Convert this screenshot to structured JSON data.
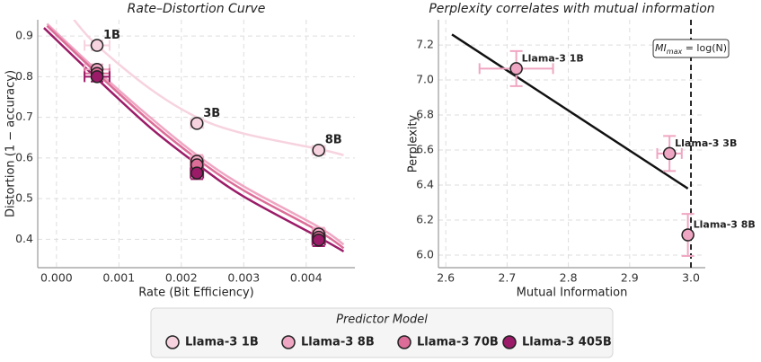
{
  "chart_data": [
    {
      "type": "scatter",
      "title": "Rate–Distortion Curve",
      "x_label": "Rate (Bit Efficiency)",
      "y_label": "Distortion (1 − accuracy)",
      "xlim": [
        -0.0003,
        0.00478
      ],
      "ylim": [
        0.33,
        0.94
      ],
      "xticks": [
        {
          "value": 0,
          "label": "0.000"
        },
        {
          "value": 0.001,
          "label": "0.001"
        },
        {
          "value": 0.002,
          "label": "0.002"
        },
        {
          "value": 0.003,
          "label": "0.003"
        },
        {
          "value": 0.004,
          "label": "0.004"
        }
      ],
      "yticks": [
        0.4,
        0.5,
        0.6,
        0.7,
        0.8,
        0.9
      ],
      "grid": true,
      "x": [
        0.00065,
        0.00225,
        0.0042
      ],
      "annotations": [
        "1B",
        "3B",
        "8B"
      ],
      "series": [
        {
          "name": "Llama-3 1B",
          "color": "#f7d3df",
          "values": [
            0.877,
            0.685,
            0.619
          ],
          "xerr": [
            0.0002,
            0.0001,
            0.0001
          ],
          "yerr": [
            0.012,
            0.01,
            0.01
          ],
          "fit": {
            "x": [
              0.00028,
              0.00065,
              0.0015,
              0.00225,
              0.003,
              0.0042,
              0.0046
            ],
            "values": [
              0.94,
              0.877,
              0.77,
              0.7,
              0.66,
              0.622,
              0.607
            ]
          }
        },
        {
          "name": "Llama-3 8B",
          "color": "#efa6c2",
          "values": [
            0.818,
            0.592,
            0.413
          ],
          "xerr": [
            0.0002,
            0.0001,
            0.0001
          ],
          "yerr": [
            0.012,
            0.015,
            0.015
          ],
          "fit": {
            "x": [
              -0.00015,
              0.00065,
              0.0015,
              0.00225,
              0.003,
              0.0042,
              0.0046
            ],
            "values": [
              0.93,
              0.815,
              0.7,
              0.607,
              0.53,
              0.43,
              0.387
            ]
          }
        },
        {
          "name": "Llama-3 70B",
          "color": "#dc6d98",
          "values": [
            0.808,
            0.583,
            0.405
          ],
          "xerr": [
            0.0002,
            0.0001,
            0.0001
          ],
          "yerr": [
            0.012,
            0.015,
            0.015
          ],
          "fit": {
            "x": [
              -0.00015,
              0.00065,
              0.0015,
              0.00225,
              0.003,
              0.0042,
              0.0046
            ],
            "values": [
              0.925,
              0.808,
              0.69,
              0.598,
              0.52,
              0.42,
              0.378
            ]
          }
        },
        {
          "name": "Llama-3 405B",
          "color": "#9b1b68",
          "values": [
            0.8,
            0.563,
            0.398
          ],
          "xerr": [
            0.0002,
            0.0001,
            0.0001
          ],
          "yerr": [
            0.012,
            0.015,
            0.015
          ],
          "fit": {
            "x": [
              -0.0002,
              0.00065,
              0.0015,
              0.00225,
              0.003,
              0.0042,
              0.0046
            ],
            "values": [
              0.92,
              0.795,
              0.675,
              0.585,
              0.505,
              0.405,
              0.37
            ]
          }
        }
      ]
    },
    {
      "type": "scatter",
      "title": "Perplexity correlates with mutual information",
      "x_label": "Mutual Information",
      "y_label": "Perplexity",
      "xlim": [
        2.588,
        3.0234
      ],
      "ylim": [
        5.928,
        7.344
      ],
      "xticks": [
        2.6,
        2.7,
        2.8,
        2.9,
        {
          "value": 3,
          "label": "3.0"
        }
      ],
      "yticks": [
        {
          "value": 6,
          "label": "6.0"
        },
        6.2,
        6.4,
        6.6,
        6.8,
        {
          "value": 7,
          "label": "7.0"
        },
        7.2
      ],
      "grid": true,
      "series": [
        {
          "color": "#efa6c2",
          "point_labels": [
            "Llama-3 1B",
            "Llama-3 3B",
            "Llama-3 8B"
          ],
          "x": [
            2.715,
            2.965,
            2.995
          ],
          "values": [
            7.065,
            6.58,
            6.115
          ],
          "xerr": [
            0.06,
            0.02,
            0.004
          ],
          "yerr": [
            0.1,
            0.1,
            0.12
          ]
        }
      ],
      "fit": {
        "x": [
          2.61,
          2.995
        ],
        "values": [
          7.26,
          6.38
        ],
        "color": "#111111"
      },
      "vline": {
        "x": 3,
        "label": {
          "main": "MI",
          "sub": "max",
          "rest": " = log(N)"
        }
      }
    }
  ],
  "legend": {
    "title": "Predictor Model"
  }
}
